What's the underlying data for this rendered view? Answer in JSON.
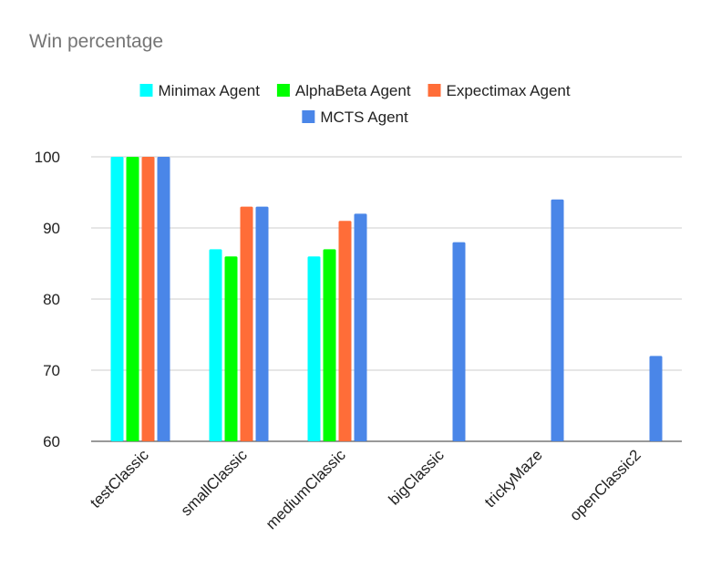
{
  "chart_data": {
    "type": "bar",
    "title": "Win percentage",
    "xlabel": "",
    "ylabel": "",
    "ylim": [
      60,
      100
    ],
    "yticks": [
      60,
      70,
      80,
      90,
      100
    ],
    "grid": true,
    "legend_position": "top",
    "categories": [
      "testClassic",
      "smallClassic",
      "mediumClassic",
      "bigClassic",
      "trickyMaze",
      "openClassic2"
    ],
    "series": [
      {
        "name": "Minimax Agent",
        "color": "#00ffff",
        "values": [
          100,
          87,
          86,
          null,
          null,
          null
        ]
      },
      {
        "name": "AlphaBeta Agent",
        "color": "#00ff00",
        "values": [
          100,
          86,
          87,
          null,
          null,
          null
        ]
      },
      {
        "name": "Expectimax Agent",
        "color": "#ff6d38",
        "values": [
          100,
          93,
          91,
          null,
          null,
          null
        ]
      },
      {
        "name": "MCTS Agent",
        "color": "#4a86e8",
        "values": [
          100,
          93,
          92,
          88,
          94,
          72
        ]
      }
    ]
  }
}
